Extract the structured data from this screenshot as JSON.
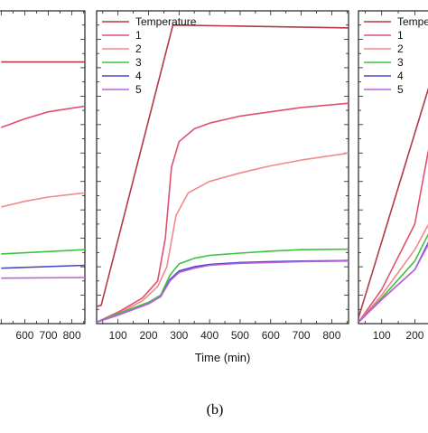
{
  "caption": "(b)",
  "chart_data": [
    {
      "type": "line",
      "panel": "left (partially cropped)",
      "x_tick_labels": [
        "600",
        "700",
        "800"
      ],
      "series": [
        {
          "name": "Temperature",
          "color": "#b03a48",
          "x": [
            500,
            855
          ],
          "y": [
            9.2,
            9.2
          ]
        },
        {
          "name": "1",
          "color": "#e0506e",
          "x": [
            500,
            600,
            700,
            855
          ],
          "y": [
            6.9,
            7.2,
            7.45,
            7.65
          ]
        },
        {
          "name": "2",
          "color": "#f08a8a",
          "x": [
            500,
            600,
            700,
            855
          ],
          "y": [
            4.1,
            4.3,
            4.45,
            4.6
          ]
        },
        {
          "name": "3",
          "color": "#3cc43c",
          "x": [
            500,
            855
          ],
          "y": [
            2.45,
            2.6
          ]
        },
        {
          "name": "4",
          "color": "#4848c8",
          "x": [
            500,
            855
          ],
          "y": [
            1.95,
            2.05
          ]
        },
        {
          "name": "5",
          "color": "#c060d8",
          "x": [
            500,
            855
          ],
          "y": [
            1.6,
            1.62
          ]
        }
      ]
    },
    {
      "type": "line",
      "panel": "middle",
      "xlabel": "Time (min)",
      "xlim": [
        30,
        855
      ],
      "ylim": [
        0,
        11
      ],
      "x_ticks": [
        100,
        200,
        300,
        400,
        500,
        600,
        700,
        800
      ],
      "x_tick_labels": [
        "100",
        "200",
        "300",
        "400",
        "500",
        "600",
        "700",
        "800"
      ],
      "legend_position": "top-left",
      "series": [
        {
          "name": "Temperature",
          "color": "#b03a48",
          "x": [
            30,
            45,
            280,
            855
          ],
          "y": [
            0.6,
            0.65,
            10.5,
            10.4
          ]
        },
        {
          "name": "1",
          "color": "#e0506e",
          "x": [
            30,
            100,
            180,
            230,
            255,
            275,
            300,
            350,
            400,
            500,
            600,
            700,
            855
          ],
          "y": [
            0.05,
            0.4,
            0.9,
            1.5,
            3.0,
            5.5,
            6.4,
            6.85,
            7.05,
            7.3,
            7.45,
            7.6,
            7.75
          ]
        },
        {
          "name": "2",
          "color": "#f08a8a",
          "x": [
            30,
            100,
            180,
            230,
            260,
            290,
            330,
            400,
            500,
            600,
            700,
            855
          ],
          "y": [
            0.05,
            0.35,
            0.8,
            1.3,
            2.0,
            3.8,
            4.6,
            5.0,
            5.3,
            5.55,
            5.75,
            6.0
          ]
        },
        {
          "name": "3",
          "color": "#3cc43c",
          "x": [
            30,
            100,
            200,
            240,
            270,
            300,
            350,
            400,
            500,
            600,
            700,
            855
          ],
          "y": [
            0.05,
            0.35,
            0.75,
            1.0,
            1.7,
            2.1,
            2.3,
            2.4,
            2.48,
            2.55,
            2.6,
            2.62
          ]
        },
        {
          "name": "4",
          "color": "#4848c8",
          "x": [
            30,
            100,
            200,
            240,
            270,
            300,
            350,
            400,
            500,
            600,
            700,
            855
          ],
          "y": [
            0.05,
            0.3,
            0.7,
            0.95,
            1.55,
            1.85,
            2.0,
            2.08,
            2.15,
            2.18,
            2.2,
            2.22
          ]
        },
        {
          "name": "5",
          "color": "#c060d8",
          "x": [
            30,
            100,
            200,
            240,
            270,
            300,
            350,
            400,
            500,
            600,
            700,
            855
          ],
          "y": [
            0.05,
            0.3,
            0.7,
            0.95,
            1.5,
            1.8,
            1.95,
            2.05,
            2.12,
            2.15,
            2.18,
            2.2
          ]
        }
      ]
    },
    {
      "type": "line",
      "panel": "right (partially cropped)",
      "x_tick_labels": [
        "100",
        "200"
      ],
      "legend_position": "top-left",
      "series": [
        {
          "name": "Temperature",
          "color": "#b03a48",
          "x": [
            30,
            260
          ],
          "y": [
            0.2,
            9.0
          ]
        },
        {
          "name": "1",
          "color": "#e0506e",
          "x": [
            30,
            100,
            200,
            260
          ],
          "y": [
            0.05,
            1.2,
            3.5,
            7.3
          ]
        },
        {
          "name": "2",
          "color": "#f08a8a",
          "x": [
            30,
            100,
            200,
            260
          ],
          "y": [
            0.05,
            1.0,
            2.6,
            3.9
          ]
        },
        {
          "name": "3",
          "color": "#3cc43c",
          "x": [
            30,
            100,
            200,
            260
          ],
          "y": [
            0.05,
            0.9,
            2.2,
            3.6
          ]
        },
        {
          "name": "4",
          "color": "#4848c8",
          "x": [
            30,
            100,
            200,
            260
          ],
          "y": [
            0.05,
            0.85,
            1.9,
            3.3
          ]
        },
        {
          "name": "5",
          "color": "#c060d8",
          "x": [
            30,
            100,
            200,
            260
          ],
          "y": [
            0.05,
            0.85,
            1.9,
            3.2
          ]
        }
      ]
    }
  ]
}
